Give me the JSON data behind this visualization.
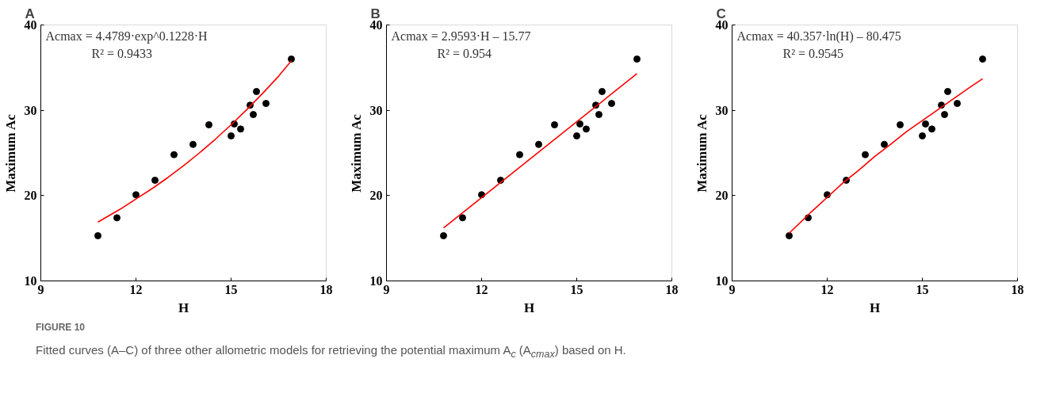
{
  "chart_data": [
    {
      "type": "scatter",
      "title": "A",
      "xlabel": "H",
      "ylabel": "Maximum Ac",
      "xlim": [
        9,
        18
      ],
      "xticks": [
        9,
        12,
        15,
        18
      ],
      "ylim": [
        10,
        40
      ],
      "yticks": [
        10,
        20,
        30,
        40
      ],
      "marker": "circle",
      "series": [
        {
          "color": "#000000",
          "x": [
            10.8,
            11.4,
            12.0,
            12.6,
            13.2,
            13.8,
            14.3,
            15.0,
            15.1,
            15.3,
            15.6,
            15.7,
            15.8,
            16.1,
            16.9
          ],
          "values": [
            15.3,
            17.4,
            20.1,
            21.8,
            24.8,
            26.0,
            28.3,
            27.0,
            28.4,
            27.8,
            30.6,
            29.5,
            32.2,
            30.8,
            36.0
          ]
        },
        {
          "type": "line",
          "marker": "none",
          "color": "#ff0000",
          "x": [
            10.8,
            11.5,
            12,
            12.5,
            13,
            13.5,
            14,
            14.5,
            15,
            15.5,
            16,
            16.5,
            16.9
          ],
          "values": [
            16.9,
            18.4,
            19.6,
            20.8,
            22.1,
            23.5,
            25.0,
            26.6,
            28.3,
            30.1,
            32.0,
            34.0,
            35.8
          ]
        }
      ],
      "annotations": [
        "Acmax = 4.4789·exp^0.1228·H",
        "R² = 0.9433",
        "FIGURE 10",
        "Fitted curves (A–C) of three other allometric models for retrieving the potential maximum A$_{c}$ (A$_{cmax}$) based on H."
      ]
    },
    {
      "type": "scatter",
      "title": "B",
      "xlabel": "H",
      "ylabel": "Maximum Ac",
      "xlim": [
        9,
        18
      ],
      "xticks": [
        9,
        12,
        15,
        18
      ],
      "ylim": [
        10,
        40
      ],
      "yticks": [
        10,
        20,
        30,
        40
      ],
      "marker": "circle",
      "series": [
        {
          "color": "#000000",
          "x": [
            10.8,
            11.4,
            12.0,
            12.6,
            13.2,
            13.8,
            14.3,
            15.0,
            15.1,
            15.3,
            15.6,
            15.7,
            15.8,
            16.1,
            16.9
          ],
          "values": [
            15.3,
            17.4,
            20.1,
            21.8,
            24.8,
            26.0,
            28.3,
            27.0,
            28.4,
            27.8,
            30.6,
            29.5,
            32.2,
            30.8,
            36.0
          ]
        },
        {
          "type": "line",
          "marker": "none",
          "color": "#ff0000",
          "x": [
            10.8,
            16.9
          ],
          "values": [
            16.2,
            34.3
          ]
        }
      ],
      "annotations": [
        "Acmax = 2.9593·H – 15.77",
        "R² = 0.954"
      ]
    },
    {
      "type": "scatter",
      "title": "C",
      "xlabel": "H",
      "ylabel": "Maximum Ac",
      "xlim": [
        9,
        18
      ],
      "xticks": [
        9,
        12,
        15,
        18
      ],
      "ylim": [
        10,
        40
      ],
      "yticks": [
        10,
        20,
        30,
        40
      ],
      "marker": "circle",
      "series": [
        {
          "color": "#000000",
          "x": [
            10.8,
            11.4,
            12.0,
            12.6,
            13.2,
            13.8,
            14.3,
            15.0,
            15.1,
            15.3,
            15.6,
            15.7,
            15.8,
            16.1,
            16.9
          ],
          "values": [
            15.3,
            17.4,
            20.1,
            21.8,
            24.8,
            26.0,
            28.3,
            27.0,
            28.4,
            27.8,
            30.6,
            29.5,
            32.2,
            30.8,
            36.0
          ]
        },
        {
          "type": "line",
          "marker": "none",
          "color": "#ff0000",
          "x": [
            10.8,
            11.5,
            12,
            12.5,
            13,
            13.5,
            14,
            14.5,
            15,
            15.5,
            16,
            16.5,
            16.9
          ],
          "values": [
            15.6,
            18.1,
            19.8,
            21.5,
            23.0,
            24.6,
            26.0,
            27.5,
            28.8,
            30.1,
            31.4,
            32.7,
            33.7
          ]
        }
      ],
      "annotations": [
        "Acmax = 40.357·ln(H) – 80.475",
        "R² = 0.9545"
      ]
    }
  ]
}
